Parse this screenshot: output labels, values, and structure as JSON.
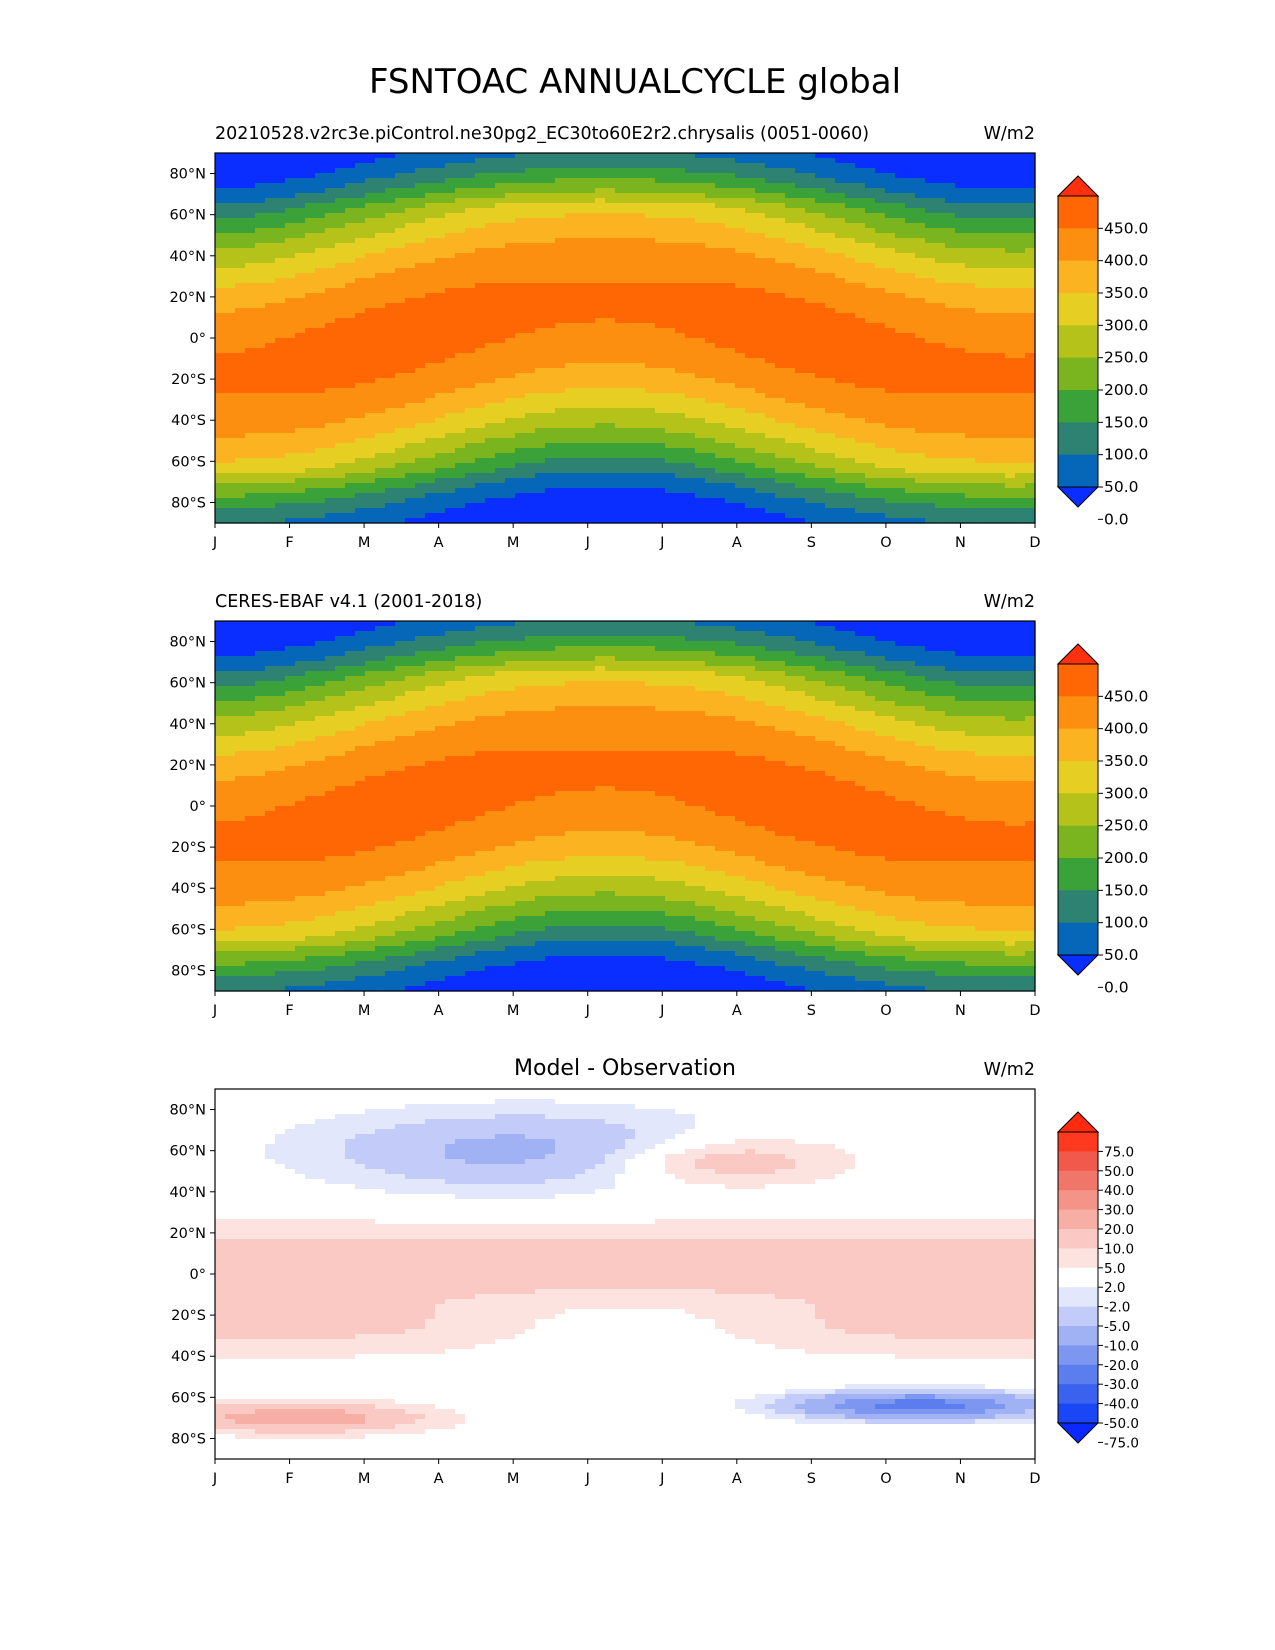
{
  "title": "FSNTOAC ANNUALCYCLE global",
  "chart_data": [
    {
      "type": "heatmap",
      "left_title": "20210528.v2rc3e.piControl.ne30pg2_EC30to60E2r2.chrysalis (0051-0060)",
      "center_title": "",
      "units": "W/m2",
      "x_ticks": [
        "J",
        "F",
        "M",
        "A",
        "M",
        "J",
        "J",
        "A",
        "S",
        "O",
        "N",
        "D"
      ],
      "y_ticks": [
        "80°N",
        "60°N",
        "40°N",
        "20°N",
        "0°",
        "20°S",
        "40°S",
        "60°S",
        "80°S"
      ],
      "y_tick_values": [
        80,
        60,
        40,
        20,
        0,
        -20,
        -40,
        -60,
        -80
      ],
      "ylim": [
        -90,
        90
      ],
      "field": "field",
      "colorbar": {
        "levels": [
          0,
          50,
          100,
          150,
          200,
          250,
          300,
          350,
          400,
          450
        ],
        "labels": [
          "450.0",
          "400.0",
          "350.0",
          "300.0",
          "250.0",
          "200.0",
          "150.0",
          "100.0",
          "50.0",
          "0.0"
        ],
        "colors": [
          "#0a2eff",
          "#0667b8",
          "#2d8272",
          "#3ba23a",
          "#7ab520",
          "#b5c21a",
          "#e6cf22",
          "#fbb322",
          "#fd8f10",
          "#fe6704",
          "#ff3010"
        ]
      }
    },
    {
      "type": "heatmap",
      "left_title": "CERES-EBAF v4.1 (2001-2018)",
      "center_title": "",
      "units": "W/m2",
      "x_ticks": [
        "J",
        "F",
        "M",
        "A",
        "M",
        "J",
        "J",
        "A",
        "S",
        "O",
        "N",
        "D"
      ],
      "y_ticks": [
        "80°N",
        "60°N",
        "40°N",
        "20°N",
        "0°",
        "20°S",
        "40°S",
        "60°S",
        "80°S"
      ],
      "y_tick_values": [
        80,
        60,
        40,
        20,
        0,
        -20,
        -40,
        -60,
        -80
      ],
      "ylim": [
        -90,
        90
      ],
      "field": "field",
      "colorbar": {
        "levels": [
          0,
          50,
          100,
          150,
          200,
          250,
          300,
          350,
          400,
          450
        ],
        "labels": [
          "450.0",
          "400.0",
          "350.0",
          "300.0",
          "250.0",
          "200.0",
          "150.0",
          "100.0",
          "50.0",
          "0.0"
        ],
        "colors": [
          "#0a2eff",
          "#0667b8",
          "#2d8272",
          "#3ba23a",
          "#7ab520",
          "#b5c21a",
          "#e6cf22",
          "#fbb322",
          "#fd8f10",
          "#fe6704",
          "#ff3010"
        ]
      }
    },
    {
      "type": "heatmap",
      "left_title": "",
      "center_title": "Model - Observation",
      "units": "W/m2",
      "x_ticks": [
        "J",
        "F",
        "M",
        "A",
        "M",
        "J",
        "J",
        "A",
        "S",
        "O",
        "N",
        "D"
      ],
      "y_ticks": [
        "80°N",
        "60°N",
        "40°N",
        "20°N",
        "0°",
        "20°S",
        "40°S",
        "60°S",
        "80°S"
      ],
      "y_tick_values": [
        80,
        60,
        40,
        20,
        0,
        -20,
        -40,
        -60,
        -80
      ],
      "ylim": [
        -90,
        90
      ],
      "field": "diff",
      "colorbar": {
        "levels": [
          -75,
          -50,
          -40,
          -30,
          -20,
          -10,
          -5,
          -2,
          2,
          5,
          10,
          20,
          30,
          40,
          50,
          75
        ],
        "labels": [
          "75.0",
          "50.0",
          "40.0",
          "30.0",
          "20.0",
          "10.0",
          "5.0",
          "2.0",
          "-2.0",
          "-5.0",
          "-10.0",
          "-20.0",
          "-30.0",
          "-40.0",
          "-50.0",
          "-75.0"
        ],
        "colors": [
          "#0a28ff",
          "#1a47f5",
          "#3a62ee",
          "#5b7dee",
          "#7d97f0",
          "#a0b2f4",
          "#c3ccf8",
          "#e2e7fb",
          "#ffffff",
          "#fde3e0",
          "#fac9c3",
          "#f7aea4",
          "#f49387",
          "#f1766a",
          "#f0594c",
          "#fd3a20",
          "#ff2a10"
        ]
      }
    }
  ]
}
